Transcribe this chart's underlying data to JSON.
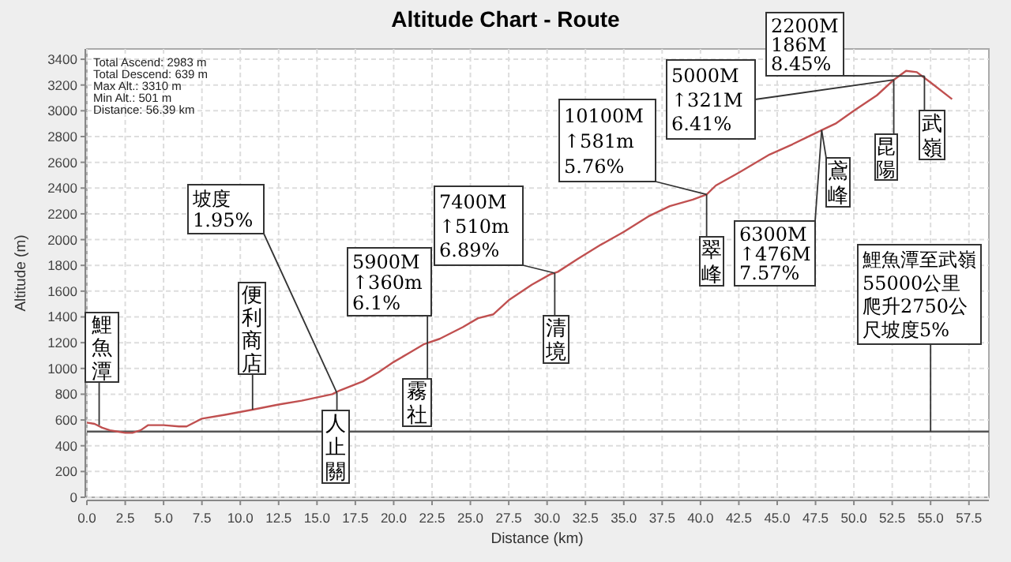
{
  "chart_data": {
    "type": "line",
    "title": "Altitude Chart - Route",
    "xlabel": "Distance (km)",
    "ylabel": "Altitude (m)",
    "x": [
      0,
      0.5,
      1,
      1.5,
      2,
      2.5,
      3,
      3.5,
      4,
      5,
      6,
      6.5,
      7.5,
      9,
      10.8,
      12.5,
      14,
      16,
      16.5,
      18,
      19,
      20,
      21,
      22,
      23,
      24.5,
      25.5,
      26.5,
      27.5,
      29,
      30.2,
      30.7,
      32,
      33.5,
      35,
      36.6,
      38,
      39.5,
      40.4,
      41,
      42.5,
      44.5,
      46,
      47.9,
      48.8,
      50,
      51.5,
      52.6,
      53.4,
      54.1,
      55,
      56.4
    ],
    "series": [
      {
        "color": "#c05050",
        "values": [
          580,
          570,
          540,
          520,
          510,
          500,
          501,
          520,
          560,
          560,
          550,
          550,
          610,
          640,
          680,
          720,
          750,
          800,
          830,
          900,
          970,
          1050,
          1120,
          1190,
          1230,
          1320,
          1390,
          1420,
          1530,
          1650,
          1730,
          1750,
          1850,
          1960,
          2060,
          2180,
          2260,
          2310,
          2350,
          2420,
          2520,
          2660,
          2740,
          2850,
          2900,
          3000,
          3120,
          3240,
          3310,
          3300,
          3220,
          3090
        ]
      }
    ],
    "xlim": [
      0,
      58.8
    ],
    "ylim": [
      0,
      3480
    ],
    "xticks": [
      {
        "value": 0,
        "label": "0.0"
      },
      2.5,
      {
        "value": 5,
        "label": "5.0"
      },
      7.5,
      {
        "value": 10,
        "label": "10.0"
      },
      12.5,
      {
        "value": 15,
        "label": "15.0"
      },
      17.5,
      {
        "value": 20,
        "label": "20.0"
      },
      22.5,
      {
        "value": 25,
        "label": "25.0"
      },
      27.5,
      {
        "value": 30,
        "label": "30.0"
      },
      32.5,
      {
        "value": 35,
        "label": "35.0"
      },
      37.5,
      {
        "value": 40,
        "label": "40.0"
      },
      42.5,
      {
        "value": 45,
        "label": "45.0"
      },
      47.5,
      {
        "value": 50,
        "label": "50.0"
      },
      52.5,
      {
        "value": 55,
        "label": "55.0"
      },
      57.5
    ],
    "yticks": [
      0,
      200,
      400,
      600,
      800,
      1000,
      1200,
      1400,
      1600,
      1800,
      2000,
      2200,
      2400,
      2600,
      2800,
      3000,
      3200,
      3400
    ],
    "grid": true,
    "marker": "none",
    "line_style": "solid",
    "ref_lines": [
      {
        "axis": "y",
        "value": 510,
        "color": "#555555"
      }
    ],
    "annotations": [
      "Total Ascend: 2983 m",
      "Total Descend: 639 m",
      "Max Alt.: 3310 m",
      "Min Alt.: 501 m",
      "Distance: 56.39 km",
      {
        "text": "鯉魚潭",
        "x": 0.8,
        "y": 560
      },
      {
        "text": "坡度1.95%",
        "x": 16.3,
        "y": 810
      },
      {
        "text": "便利商店",
        "x": 10.8,
        "y": 680
      },
      {
        "text": "人止關",
        "x": 16.3,
        "y": 810
      },
      {
        "text": "5900M ↑360m 6.1%",
        "x": 22.2,
        "y": 1190
      },
      {
        "text": "霧社",
        "x": 22.2,
        "y": 1190
      },
      {
        "text": "7400M ↑510m 6.89%",
        "x": 30.5,
        "y": 1740
      },
      {
        "text": "清境",
        "x": 30.5,
        "y": 1740
      },
      {
        "text": "10100M ↑581m 5.76%",
        "x": 40.4,
        "y": 2350
      },
      {
        "text": "翠峰",
        "x": 40.4,
        "y": 2350
      },
      {
        "text": "6300M ↑476M 7.57%",
        "x": 47.9,
        "y": 2850
      },
      {
        "text": "鳶峰",
        "x": 47.9,
        "y": 2850
      },
      {
        "text": "5000M ↑321M 6.41%",
        "x": 52.6,
        "y": 3240
      },
      {
        "text": "昆陽",
        "x": 52.6,
        "y": 3240
      },
      {
        "text": "2200M 186M 8.45%",
        "x": 54.6,
        "y": 3270
      },
      {
        "text": "武嶺",
        "x": 54.6,
        "y": 3270
      },
      {
        "text": "鯉魚潭至武嶺55000公里爬升2750公尺坡度5%",
        "x": 55,
        "y": 510
      }
    ]
  }
}
